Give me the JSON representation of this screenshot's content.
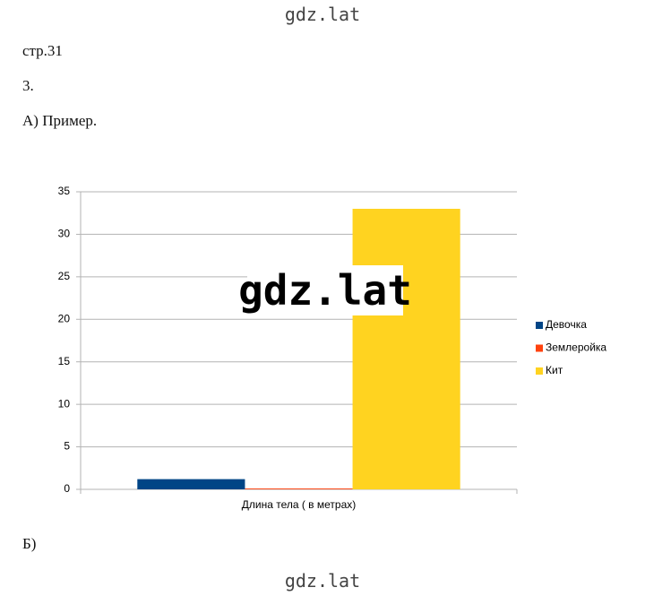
{
  "watermarks": [
    "gdz.lat",
    "gdz.lat",
    "gdz.lat"
  ],
  "page_ref": "стр.31",
  "task": "3.",
  "part_a": "А) Пример.",
  "part_b": "Б)",
  "chart_data": {
    "type": "bar",
    "categories": [
      "Длина тела ( в метрах)"
    ],
    "series": [
      {
        "name": "Девочка",
        "color": "#004586",
        "values": [
          1.2
        ]
      },
      {
        "name": "Землеройка",
        "color": "#ff420e",
        "values": [
          0.1
        ]
      },
      {
        "name": "Кит",
        "color": "#ffd320",
        "values": [
          33
        ]
      }
    ],
    "ylim": [
      0,
      35
    ],
    "yticks": [
      0,
      5,
      10,
      15,
      20,
      25,
      30,
      35
    ],
    "grid": true,
    "legend": "right"
  }
}
